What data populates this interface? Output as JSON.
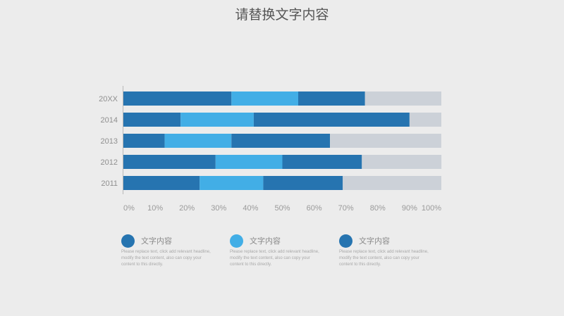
{
  "title": "请替换文字内容",
  "chart_data": {
    "type": "bar",
    "orientation": "horizontal",
    "stacked": true,
    "categories": [
      "20XX",
      "2014",
      "2013",
      "2012",
      "2011"
    ],
    "series": [
      {
        "values": [
          34,
          18,
          13,
          29,
          24
        ],
        "color": "#2674b0"
      },
      {
        "values": [
          21,
          23,
          21,
          21,
          20
        ],
        "color": "#42aee6"
      },
      {
        "values": [
          21,
          49,
          31,
          25,
          25
        ],
        "color": "#2674b0"
      },
      {
        "values": [
          24,
          10,
          35,
          25,
          31
        ],
        "color": "#ccd1d8"
      }
    ],
    "x_ticks": [
      "0%",
      "10%",
      "20%",
      "30%",
      "40%",
      "50%",
      "60%",
      "70%",
      "80%",
      "90%",
      "100%"
    ],
    "xlim": [
      0,
      100
    ],
    "grid": false
  },
  "legend": [
    {
      "label": "文字内容",
      "color": "#2674b0",
      "description": "Please replace text, click add relevant headline, modify the text content, also can copy your content to this directly."
    },
    {
      "label": "文字内容",
      "color": "#42aee6",
      "description": "Please replace text, click add relevant headline, modify the text content, also can copy your content to this directly."
    },
    {
      "label": "文字内容",
      "color": "#2674b0",
      "description": "Please replace text, click add relevant headline, modify the text content, also can copy your content to this directly."
    }
  ]
}
